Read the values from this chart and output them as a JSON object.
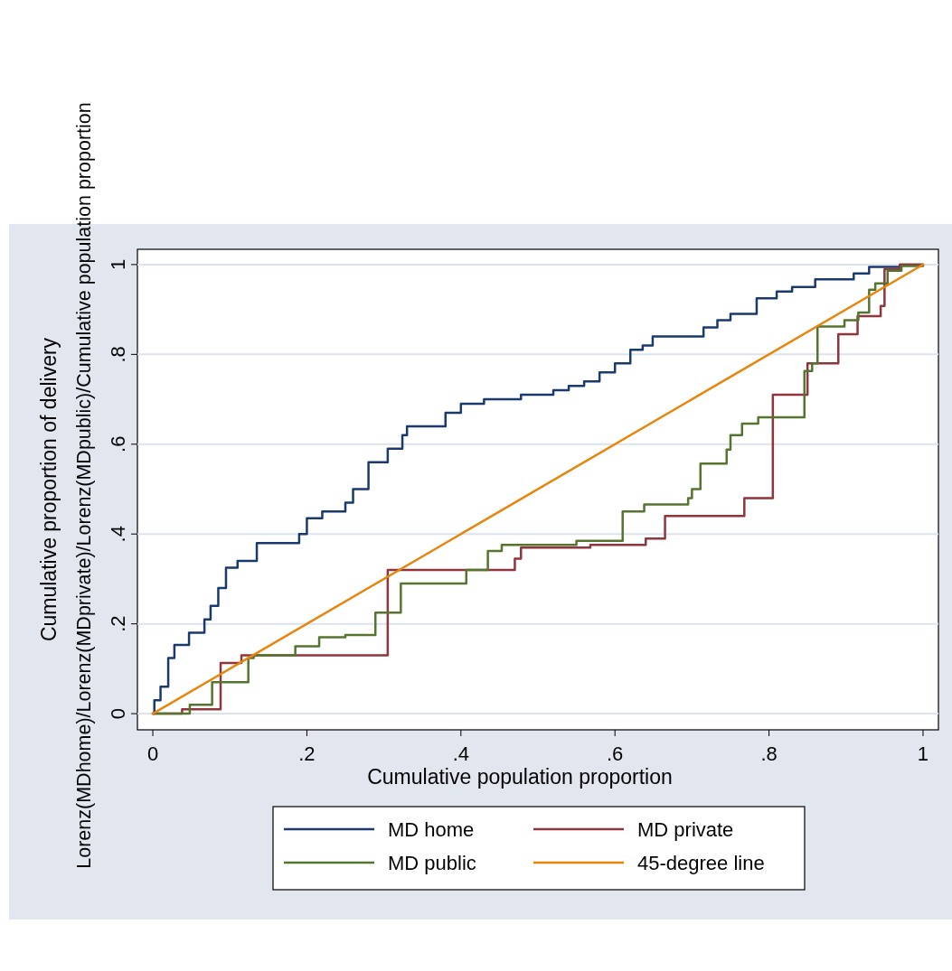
{
  "chart_data": {
    "type": "step",
    "xlabel": "Cumulative population proportion",
    "ylabel": "Cumulative proportion of delivery",
    "annotations": [
      "Lorenz(MDhome)/Lorenz(MDprivate)/Lorenz(MDpublic)/Cumulative population proportion"
    ],
    "xlim": [
      -0.02,
      1.02
    ],
    "ylim": [
      -0.036,
      1.034
    ],
    "xticks": [
      0,
      {
        "value": 0.2,
        "label": ".2"
      },
      {
        "value": 0.4,
        "label": ".4"
      },
      {
        "value": 0.6,
        "label": ".6"
      },
      {
        "value": 0.8,
        "label": ".8"
      },
      1
    ],
    "yticks": [
      0,
      {
        "value": 0.2,
        "label": ".2"
      },
      {
        "value": 0.4,
        "label": ".4"
      },
      {
        "value": 0.6,
        "label": ".6"
      },
      {
        "value": 0.8,
        "label": ".8"
      },
      1
    ],
    "grid": "y",
    "legend": "bottom",
    "series": [
      {
        "name": "MD home",
        "color": "#1a3a6e",
        "x": [
          0,
          0.002,
          0.01,
          0.02,
          0.028,
          0.047,
          0.067,
          0.075,
          0.085,
          0.095,
          0.11,
          0.135,
          0.19,
          0.2,
          0.22,
          0.25,
          0.26,
          0.28,
          0.305,
          0.324,
          0.33,
          0.38,
          0.4,
          0.43,
          0.478,
          0.52,
          0.54,
          0.56,
          0.58,
          0.6,
          0.62,
          0.636,
          0.649,
          0.715,
          0.733,
          0.75,
          0.784,
          0.81,
          0.83,
          0.86,
          0.91,
          0.93,
          0.97,
          1
        ],
        "values": [
          0,
          0.03,
          0.06,
          0.124,
          0.153,
          0.18,
          0.21,
          0.24,
          0.28,
          0.325,
          0.34,
          0.38,
          0.4,
          0.435,
          0.45,
          0.47,
          0.5,
          0.56,
          0.59,
          0.62,
          0.64,
          0.67,
          0.69,
          0.7,
          0.71,
          0.72,
          0.73,
          0.74,
          0.76,
          0.78,
          0.81,
          0.82,
          0.84,
          0.86,
          0.876,
          0.89,
          0.925,
          0.94,
          0.95,
          0.967,
          0.98,
          0.995,
          1,
          1
        ]
      },
      {
        "name": "MD private",
        "color": "#90353b",
        "x": [
          0,
          0.038,
          0.088,
          0.115,
          0.305,
          0.47,
          0.478,
          0.568,
          0.64,
          0.665,
          0.768,
          0.805,
          0.85,
          0.89,
          0.915,
          0.945,
          0.95,
          0.97,
          1
        ],
        "values": [
          0,
          0.01,
          0.113,
          0.13,
          0.32,
          0.345,
          0.37,
          0.376,
          0.39,
          0.44,
          0.48,
          0.71,
          0.78,
          0.845,
          0.885,
          0.908,
          0.99,
          1,
          1
        ]
      },
      {
        "name": "MD public",
        "color": "#55752f",
        "x": [
          0,
          0.048,
          0.077,
          0.124,
          0.131,
          0.185,
          0.216,
          0.25,
          0.289,
          0.322,
          0.407,
          0.435,
          0.453,
          0.55,
          0.61,
          0.638,
          0.695,
          0.7,
          0.711,
          0.745,
          0.75,
          0.765,
          0.786,
          0.846,
          0.856,
          0.863,
          0.898,
          0.916,
          0.93,
          0.938,
          0.954,
          0.972,
          1
        ],
        "values": [
          0,
          0.02,
          0.07,
          0.124,
          0.13,
          0.15,
          0.17,
          0.175,
          0.225,
          0.29,
          0.32,
          0.362,
          0.376,
          0.385,
          0.45,
          0.466,
          0.48,
          0.5,
          0.557,
          0.588,
          0.62,
          0.646,
          0.66,
          0.763,
          0.78,
          0.862,
          0.876,
          0.893,
          0.944,
          0.958,
          0.986,
          0.997,
          1
        ]
      },
      {
        "name": "45-degree line",
        "type": "line",
        "color": "#e8850c",
        "x": [
          0,
          1
        ],
        "values": [
          0,
          1
        ]
      }
    ]
  }
}
